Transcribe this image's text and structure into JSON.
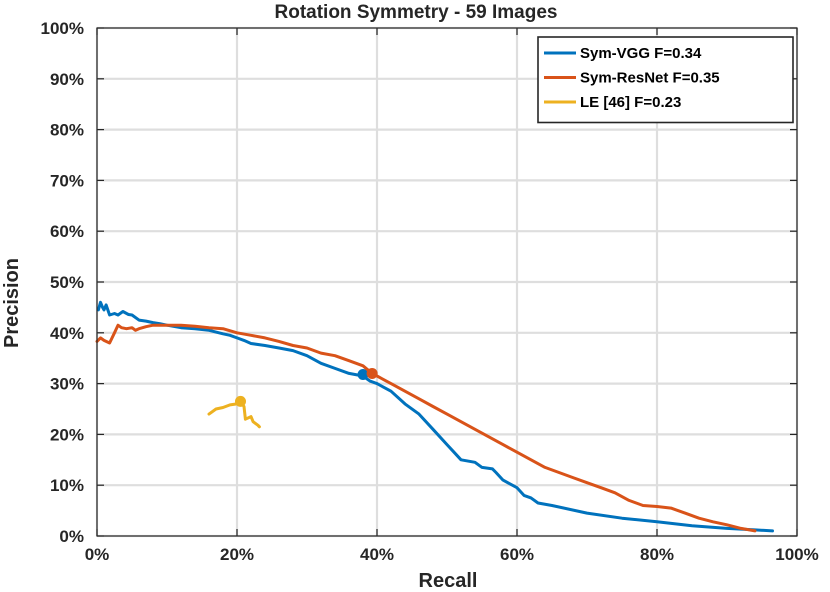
{
  "chart_data": {
    "type": "line",
    "title": "Rotation Symmetry - 59 Images",
    "xlabel": "Recall",
    "ylabel": "Precision",
    "xlim": [
      0,
      100
    ],
    "ylim": [
      0,
      100
    ],
    "x_ticks": [
      "0%",
      "20%",
      "40%",
      "60%",
      "80%",
      "100%"
    ],
    "y_ticks": [
      "0%",
      "10%",
      "20%",
      "30%",
      "40%",
      "50%",
      "60%",
      "70%",
      "80%",
      "90%",
      "100%"
    ],
    "grid": true,
    "legend_position": "top-right",
    "series": [
      {
        "name": "Sym-VGG F=0.34",
        "color": "#0072BD",
        "points": [
          [
            0.2,
            44.5
          ],
          [
            0.5,
            46
          ],
          [
            0.8,
            45
          ],
          [
            1,
            44.5
          ],
          [
            1.3,
            45.5
          ],
          [
            1.8,
            43.5
          ],
          [
            2.5,
            43.8
          ],
          [
            3,
            43.5
          ],
          [
            3.7,
            44.2
          ],
          [
            4.5,
            43.6
          ],
          [
            5,
            43.5
          ],
          [
            6,
            42.5
          ],
          [
            7,
            42.3
          ],
          [
            8,
            42
          ],
          [
            9,
            41.8
          ],
          [
            10,
            41.5
          ],
          [
            12,
            41.0
          ],
          [
            14,
            40.8
          ],
          [
            16,
            40.5
          ],
          [
            18,
            39.8
          ],
          [
            19,
            39.5
          ],
          [
            20,
            39
          ],
          [
            21,
            38.5
          ],
          [
            22,
            37.9
          ],
          [
            24,
            37.5
          ],
          [
            26,
            37
          ],
          [
            28,
            36.5
          ],
          [
            30,
            35.5
          ],
          [
            32,
            34
          ],
          [
            34,
            33
          ],
          [
            36,
            32
          ],
          [
            38,
            31.5
          ],
          [
            39,
            30.5
          ],
          [
            40,
            30
          ],
          [
            42,
            28.5
          ],
          [
            44,
            26
          ],
          [
            46,
            24
          ],
          [
            48,
            21
          ],
          [
            50,
            18
          ],
          [
            51,
            16.5
          ],
          [
            52,
            15
          ],
          [
            54,
            14.5
          ],
          [
            55,
            13.5
          ],
          [
            56.5,
            13.2
          ],
          [
            57,
            12.5
          ],
          [
            58,
            11
          ],
          [
            60,
            9.5
          ],
          [
            61,
            8
          ],
          [
            62,
            7.5
          ],
          [
            63,
            6.5
          ],
          [
            65,
            6
          ],
          [
            70,
            4.5
          ],
          [
            75,
            3.5
          ],
          [
            80,
            2.8
          ],
          [
            85,
            2
          ],
          [
            90,
            1.5
          ],
          [
            94,
            1.2
          ],
          [
            96.5,
            1
          ]
        ],
        "operating_point": [
          38,
          31.8
        ]
      },
      {
        "name": "Sym-ResNet F=0.35",
        "color": "#D95319",
        "points": [
          [
            0,
            38.3
          ],
          [
            0.5,
            39
          ],
          [
            1,
            38.5
          ],
          [
            1.8,
            38
          ],
          [
            2.5,
            40
          ],
          [
            3,
            41.5
          ],
          [
            3.5,
            41
          ],
          [
            4.2,
            40.8
          ],
          [
            5,
            41
          ],
          [
            5.5,
            40.5
          ],
          [
            6,
            40.8
          ],
          [
            7,
            41.2
          ],
          [
            8,
            41.5
          ],
          [
            10,
            41.5
          ],
          [
            12,
            41.5
          ],
          [
            14,
            41.3
          ],
          [
            16,
            41
          ],
          [
            18,
            40.8
          ],
          [
            20,
            40
          ],
          [
            22,
            39.5
          ],
          [
            24,
            39
          ],
          [
            26,
            38.3
          ],
          [
            28,
            37.5
          ],
          [
            30,
            37
          ],
          [
            32,
            36
          ],
          [
            34,
            35.5
          ],
          [
            36,
            34.5
          ],
          [
            38,
            33.5
          ],
          [
            39.3,
            32
          ],
          [
            40,
            31.5
          ],
          [
            42,
            30
          ],
          [
            44,
            28.5
          ],
          [
            46,
            27
          ],
          [
            48,
            25.5
          ],
          [
            50,
            24
          ],
          [
            52,
            22.5
          ],
          [
            54,
            21
          ],
          [
            56,
            19.5
          ],
          [
            58,
            18
          ],
          [
            60,
            16.5
          ],
          [
            62,
            15
          ],
          [
            64,
            13.5
          ],
          [
            66,
            12.5
          ],
          [
            68,
            11.5
          ],
          [
            70,
            10.5
          ],
          [
            72,
            9.5
          ],
          [
            74,
            8.5
          ],
          [
            76,
            7
          ],
          [
            78,
            6
          ],
          [
            80,
            5.8
          ],
          [
            82,
            5.5
          ],
          [
            84,
            4.5
          ],
          [
            86,
            3.5
          ],
          [
            88,
            2.8
          ],
          [
            90,
            2.2
          ],
          [
            92,
            1.5
          ],
          [
            94,
            1
          ]
        ],
        "operating_point": [
          39.3,
          32
        ]
      },
      {
        "name": "LE [46] F=0.23",
        "color": "#EDB120",
        "points": [
          [
            16,
            24
          ],
          [
            17,
            25
          ],
          [
            18,
            25.3
          ],
          [
            19,
            25.8
          ],
          [
            20,
            26
          ],
          [
            20.5,
            26.5
          ],
          [
            21,
            25.5
          ],
          [
            21.2,
            23
          ],
          [
            22,
            23.5
          ],
          [
            22.3,
            22.5
          ],
          [
            23,
            21.8
          ],
          [
            23.2,
            21.5
          ]
        ],
        "operating_point": [
          20.5,
          26.5
        ]
      }
    ]
  }
}
